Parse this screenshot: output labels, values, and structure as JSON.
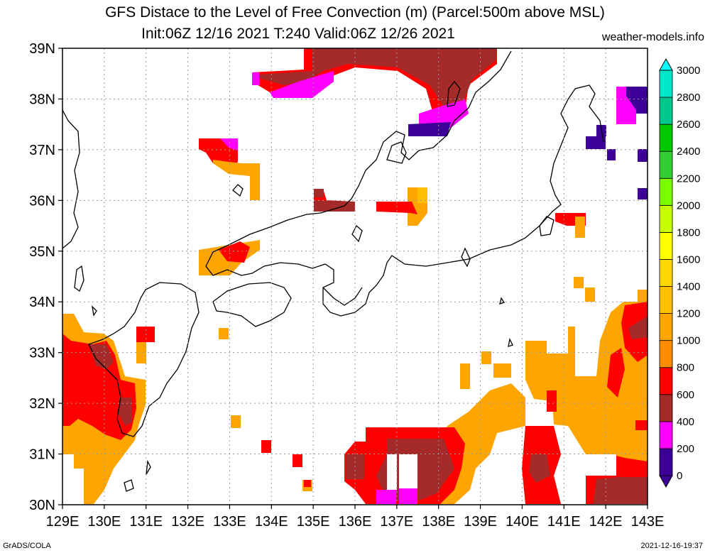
{
  "title_line1": "GFS Distace to the Level of Free Convection (m) (Parcel:500m above MSL)",
  "title_line2": "Init:06Z 12/16 2021 T:240 Valid:06Z 12/26 2021",
  "credit": "weather-models.info",
  "footer_left": "GrADS/COLA",
  "footer_right": "2021-12-16-19:37",
  "lon_labels": [
    "129E",
    "130E",
    "131E",
    "132E",
    "133E",
    "134E",
    "135E",
    "136E",
    "137E",
    "138E",
    "139E",
    "140E",
    "141E",
    "142E",
    "143E"
  ],
  "lat_labels": [
    "30N",
    "31N",
    "32N",
    "33N",
    "34N",
    "35N",
    "36N",
    "37N",
    "38N",
    "39N"
  ],
  "colorbar": {
    "labels": [
      "0",
      "200",
      "400",
      "600",
      "800",
      "1000",
      "1200",
      "1400",
      "1600",
      "1800",
      "2000",
      "2200",
      "2400",
      "2600",
      "2800",
      "3000"
    ],
    "colors": [
      "#3c0096",
      "#ff00ff",
      "#a52a2a",
      "#ff0000",
      "#ff8c00",
      "#ffa500",
      "#ffc000",
      "#ffd700",
      "#ffff00",
      "#c8ff00",
      "#7cfc00",
      "#32cd32",
      "#00c800",
      "#00c88c",
      "#00e6c8",
      "#00ffff"
    ]
  }
}
